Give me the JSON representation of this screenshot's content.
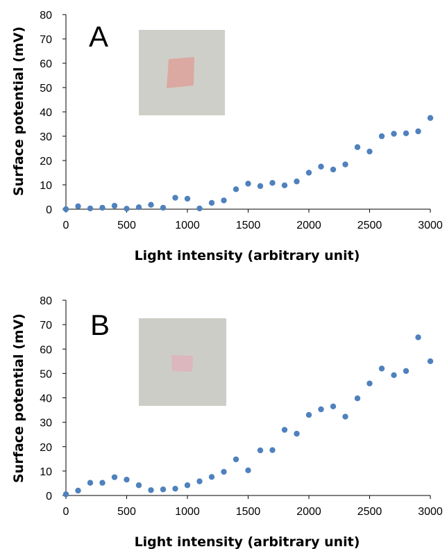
{
  "chart_data": [
    {
      "type": "scatter",
      "panel_label": "A",
      "xlabel": "Light intensity (arbitrary unit)",
      "ylabel": "Surface potential (mV)",
      "xlim": [
        0,
        3000
      ],
      "ylim": [
        0,
        80
      ],
      "xticks": [
        "0",
        "500",
        "1000",
        "1500",
        "2000",
        "2500",
        "3000"
      ],
      "yticks": [
        "0",
        "10",
        "20",
        "30",
        "40",
        "50",
        "60",
        "70",
        "80"
      ],
      "grid": false,
      "marker_color": "#4f81bd",
      "inset_photo": {
        "background": "#cfcfc9",
        "sample_color": "#dba79f"
      },
      "series": [
        {
          "x": [
            0,
            100,
            200,
            300,
            400,
            500,
            600,
            700,
            800,
            900,
            1000,
            1100,
            1200,
            1300,
            1400,
            1500,
            1600,
            1700,
            1800,
            1900,
            2000,
            2100,
            2200,
            2300,
            2400,
            2500,
            2600,
            2700,
            2800,
            2900,
            3000
          ],
          "y": [
            0,
            1.2,
            0.3,
            0.6,
            1.4,
            0.2,
            0.8,
            1.8,
            0.6,
            4.7,
            4.3,
            0.3,
            2.6,
            3.6,
            8.2,
            10.5,
            9.5,
            10.8,
            9.8,
            11.4,
            15,
            17.5,
            16.3,
            18.4,
            25.5,
            23.7,
            30,
            31,
            31.2,
            32,
            37.5
          ]
        }
      ]
    },
    {
      "type": "scatter",
      "panel_label": "B",
      "xlabel": "Light intensity (arbitrary unit)",
      "ylabel": "Surface potential (mV)",
      "xlim": [
        0,
        3000
      ],
      "ylim": [
        0,
        80
      ],
      "xticks": [
        "0",
        "500",
        "1000",
        "1500",
        "2000",
        "2500",
        "3000"
      ],
      "yticks": [
        "0",
        "10",
        "20",
        "30",
        "40",
        "50",
        "60",
        "70",
        "80"
      ],
      "grid": false,
      "marker_color": "#4f81bd",
      "inset_photo": {
        "background": "#cdcdc7",
        "sample_color": "#dcb5bc"
      },
      "series": [
        {
          "x": [
            0,
            100,
            200,
            300,
            400,
            500,
            600,
            700,
            800,
            900,
            1000,
            1100,
            1200,
            1300,
            1400,
            1500,
            1600,
            1700,
            1800,
            1900,
            2000,
            2100,
            2200,
            2300,
            2400,
            2500,
            2600,
            2700,
            2800,
            2900,
            3000
          ],
          "y": [
            0.5,
            2,
            5.2,
            5.2,
            7.5,
            6.5,
            4.2,
            2.2,
            2.5,
            2.8,
            4.2,
            5.8,
            7.6,
            9.7,
            14.8,
            10.3,
            18.5,
            18.6,
            26.9,
            25.3,
            33,
            35.3,
            36.5,
            32.3,
            39.8,
            45.9,
            52,
            49.3,
            51,
            64.8,
            55
          ]
        }
      ]
    }
  ]
}
